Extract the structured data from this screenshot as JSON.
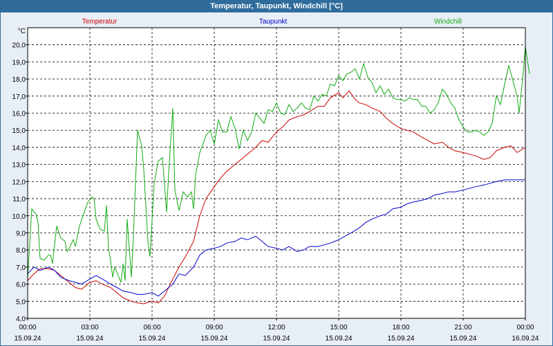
{
  "window": {
    "title": "Temperatur, Taupunkt, Windchill [°C]"
  },
  "chart_data": {
    "type": "line",
    "title": "Temperatur, Taupunkt, Windchill [°C]",
    "ylabel": "°C",
    "ylim": [
      4.0,
      21.0
    ],
    "xlim": [
      0,
      24
    ],
    "grid": true,
    "legend_position": "top",
    "y_ticks": [
      "4,0",
      "5,0",
      "6,0",
      "7,0",
      "8,0",
      "9,0",
      "10,0",
      "11,0",
      "12,0",
      "13,0",
      "14,0",
      "15,0",
      "16,0",
      "17,0",
      "18,0",
      "19,0",
      "20,0"
    ],
    "x_ticks": [
      {
        "x": 0,
        "time": "00:00",
        "date": "15.09.24"
      },
      {
        "x": 3,
        "time": "03:00",
        "date": "15.09.24"
      },
      {
        "x": 6,
        "time": "06:00",
        "date": "15.09.24"
      },
      {
        "x": 9,
        "time": "09:00",
        "date": "15.09.24"
      },
      {
        "x": 12,
        "time": "12:00",
        "date": "15.09.24"
      },
      {
        "x": 15,
        "time": "15:00",
        "date": "15.09.24"
      },
      {
        "x": 18,
        "time": "18:00",
        "date": "15.09.24"
      },
      {
        "x": 21,
        "time": "21:00",
        "date": "15.09.24"
      },
      {
        "x": 24,
        "time": "00:00",
        "date": "16.09.24"
      }
    ],
    "series": [
      {
        "name": "Temperatur",
        "color": "#cc0000",
        "points": [
          [
            0,
            6.2
          ],
          [
            0.3,
            6.6
          ],
          [
            0.6,
            6.9
          ],
          [
            1,
            6.9
          ],
          [
            1.3,
            6.8
          ],
          [
            1.6,
            6.5
          ],
          [
            2,
            6.1
          ],
          [
            2.3,
            5.8
          ],
          [
            2.6,
            5.7
          ],
          [
            3,
            6.1
          ],
          [
            3.3,
            6.2
          ],
          [
            3.6,
            6.0
          ],
          [
            4,
            5.8
          ],
          [
            4.3,
            5.5
          ],
          [
            4.6,
            5.2
          ],
          [
            5,
            5.0
          ],
          [
            5.3,
            4.9
          ],
          [
            5.6,
            4.85
          ],
          [
            6,
            5.0
          ],
          [
            6.3,
            4.9
          ],
          [
            6.6,
            5.3
          ],
          [
            7,
            6.3
          ],
          [
            7.3,
            7.0
          ],
          [
            7.6,
            7.6
          ],
          [
            8,
            8.5
          ],
          [
            8.3,
            10.0
          ],
          [
            8.6,
            11.0
          ],
          [
            9,
            11.7
          ],
          [
            9.3,
            12.2
          ],
          [
            9.6,
            12.6
          ],
          [
            10,
            13.0
          ],
          [
            10.3,
            13.3
          ],
          [
            10.6,
            13.6
          ],
          [
            11,
            14.0
          ],
          [
            11.3,
            14.4
          ],
          [
            11.6,
            14.3
          ],
          [
            12,
            14.9
          ],
          [
            12.3,
            15.2
          ],
          [
            12.6,
            15.6
          ],
          [
            13,
            15.8
          ],
          [
            13.3,
            15.9
          ],
          [
            13.6,
            16.1
          ],
          [
            14,
            16.4
          ],
          [
            14.3,
            16.4
          ],
          [
            14.6,
            16.9
          ],
          [
            15,
            17.2
          ],
          [
            15.2,
            16.9
          ],
          [
            15.5,
            17.3
          ],
          [
            15.8,
            16.8
          ],
          [
            16,
            16.6
          ],
          [
            16.3,
            16.5
          ],
          [
            16.6,
            16.3
          ],
          [
            17,
            16.1
          ],
          [
            17.3,
            15.7
          ],
          [
            17.6,
            15.4
          ],
          [
            18,
            15.1
          ],
          [
            18.3,
            15.0
          ],
          [
            18.6,
            14.9
          ],
          [
            19,
            14.6
          ],
          [
            19.3,
            14.4
          ],
          [
            19.6,
            14.2
          ],
          [
            20,
            14.3
          ],
          [
            20.3,
            14.0
          ],
          [
            20.6,
            13.8
          ],
          [
            21,
            13.7
          ],
          [
            21.3,
            13.6
          ],
          [
            21.6,
            13.5
          ],
          [
            22,
            13.3
          ],
          [
            22.3,
            13.4
          ],
          [
            22.6,
            13.8
          ],
          [
            23,
            14.0
          ],
          [
            23.3,
            14.1
          ],
          [
            23.6,
            13.7
          ],
          [
            24,
            14.0
          ]
        ]
      },
      {
        "name": "Taupunkt",
        "color": "#0000cc",
        "points": [
          [
            0,
            6.6
          ],
          [
            0.3,
            7.0
          ],
          [
            0.6,
            6.8
          ],
          [
            1,
            7.0
          ],
          [
            1.3,
            6.8
          ],
          [
            1.6,
            6.4
          ],
          [
            2,
            6.2
          ],
          [
            2.3,
            6.1
          ],
          [
            2.6,
            6.0
          ],
          [
            3,
            6.3
          ],
          [
            3.3,
            6.5
          ],
          [
            3.6,
            6.3
          ],
          [
            4,
            6.0
          ],
          [
            4.3,
            5.8
          ],
          [
            4.6,
            5.6
          ],
          [
            5,
            5.5
          ],
          [
            5.3,
            5.4
          ],
          [
            5.6,
            5.4
          ],
          [
            6,
            5.5
          ],
          [
            6.3,
            5.3
          ],
          [
            6.6,
            5.6
          ],
          [
            7,
            6.0
          ],
          [
            7.3,
            6.6
          ],
          [
            7.6,
            6.5
          ],
          [
            8,
            7.0
          ],
          [
            8.3,
            7.7
          ],
          [
            8.6,
            8.0
          ],
          [
            9,
            8.1
          ],
          [
            9.3,
            8.2
          ],
          [
            9.6,
            8.4
          ],
          [
            10,
            8.5
          ],
          [
            10.3,
            8.7
          ],
          [
            10.6,
            8.6
          ],
          [
            11,
            8.8
          ],
          [
            11.3,
            8.5
          ],
          [
            11.6,
            8.2
          ],
          [
            12,
            8.1
          ],
          [
            12.3,
            8.0
          ],
          [
            12.6,
            8.2
          ],
          [
            13,
            7.9
          ],
          [
            13.3,
            8.0
          ],
          [
            13.6,
            8.2
          ],
          [
            14,
            8.2
          ],
          [
            14.3,
            8.3
          ],
          [
            14.6,
            8.4
          ],
          [
            15,
            8.6
          ],
          [
            15.3,
            8.8
          ],
          [
            15.6,
            9.0
          ],
          [
            16,
            9.3
          ],
          [
            16.3,
            9.6
          ],
          [
            16.6,
            9.8
          ],
          [
            17,
            10.0
          ],
          [
            17.3,
            10.1
          ],
          [
            17.6,
            10.4
          ],
          [
            18,
            10.5
          ],
          [
            18.3,
            10.7
          ],
          [
            18.6,
            10.8
          ],
          [
            19,
            10.9
          ],
          [
            19.3,
            11.0
          ],
          [
            19.6,
            11.2
          ],
          [
            20,
            11.3
          ],
          [
            20.3,
            11.4
          ],
          [
            20.6,
            11.4
          ],
          [
            21,
            11.5
          ],
          [
            21.3,
            11.6
          ],
          [
            21.6,
            11.7
          ],
          [
            22,
            11.8
          ],
          [
            22.3,
            11.9
          ],
          [
            22.6,
            12.0
          ],
          [
            23,
            12.1
          ],
          [
            23.3,
            12.1
          ],
          [
            23.6,
            12.1
          ],
          [
            24,
            12.1
          ]
        ]
      },
      {
        "name": "Windchill",
        "color": "#11aa11",
        "points": [
          [
            0,
            6.3
          ],
          [
            0.2,
            10.4
          ],
          [
            0.4,
            10.1
          ],
          [
            0.5,
            9.6
          ],
          [
            0.6,
            7.5
          ],
          [
            0.8,
            7.4
          ],
          [
            1,
            7.7
          ],
          [
            1.1,
            7.7
          ],
          [
            1.2,
            7.2
          ],
          [
            1.4,
            9.4
          ],
          [
            1.6,
            8.7
          ],
          [
            1.8,
            8.5
          ],
          [
            1.9,
            7.9
          ],
          [
            2,
            8.1
          ],
          [
            2.2,
            8.6
          ],
          [
            2.3,
            8.2
          ],
          [
            2.5,
            9.4
          ],
          [
            2.7,
            10.1
          ],
          [
            2.9,
            10.8
          ],
          [
            3.1,
            11.1
          ],
          [
            3.2,
            11.0
          ],
          [
            3.3,
            9.8
          ],
          [
            3.5,
            9.2
          ],
          [
            3.7,
            9.1
          ],
          [
            3.8,
            10.6
          ],
          [
            3.9,
            8.1
          ],
          [
            4,
            7.4
          ],
          [
            4.1,
            6.4
          ],
          [
            4.2,
            7.0
          ],
          [
            4.4,
            6.4
          ],
          [
            4.5,
            6.1
          ],
          [
            4.6,
            7.2
          ],
          [
            4.7,
            6.2
          ],
          [
            4.8,
            9.8
          ],
          [
            5.0,
            6.4
          ],
          [
            5.1,
            8.8
          ],
          [
            5.3,
            15.0
          ],
          [
            5.5,
            14.1
          ],
          [
            5.6,
            12.7
          ],
          [
            5.8,
            8.5
          ],
          [
            5.9,
            7.6
          ],
          [
            6.1,
            11.9
          ],
          [
            6.3,
            13.2
          ],
          [
            6.5,
            13.4
          ],
          [
            6.6,
            11.8
          ],
          [
            6.7,
            10.2
          ],
          [
            6.8,
            12.5
          ],
          [
            7.0,
            16.3
          ],
          [
            7.1,
            11.5
          ],
          [
            7.3,
            10.3
          ],
          [
            7.5,
            11.4
          ],
          [
            7.7,
            11.1
          ],
          [
            7.9,
            11.4
          ],
          [
            8.0,
            10.4
          ],
          [
            8.1,
            12.4
          ],
          [
            8.3,
            13.7
          ],
          [
            8.4,
            14.0
          ],
          [
            8.6,
            14.7
          ],
          [
            8.8,
            15.0
          ],
          [
            9.0,
            14.2
          ],
          [
            9.2,
            15.6
          ],
          [
            9.4,
            14.9
          ],
          [
            9.6,
            14.9
          ],
          [
            9.8,
            15.8
          ],
          [
            10,
            15.1
          ],
          [
            10.2,
            13.9
          ],
          [
            10.4,
            15.0
          ],
          [
            10.6,
            14.4
          ],
          [
            10.8,
            14.9
          ],
          [
            11,
            16.0
          ],
          [
            11.2,
            15.7
          ],
          [
            11.4,
            15.4
          ],
          [
            11.6,
            16.2
          ],
          [
            11.8,
            16.1
          ],
          [
            12,
            16.6
          ],
          [
            12.2,
            16.0
          ],
          [
            12.4,
            15.9
          ],
          [
            12.6,
            16.5
          ],
          [
            12.8,
            16.1
          ],
          [
            13,
            16.3
          ],
          [
            13.2,
            16.6
          ],
          [
            13.4,
            16.3
          ],
          [
            13.6,
            16.2
          ],
          [
            13.8,
            17.0
          ],
          [
            14,
            16.7
          ],
          [
            14.2,
            17.1
          ],
          [
            14.4,
            17.0
          ],
          [
            14.6,
            17.7
          ],
          [
            14.8,
            17.6
          ],
          [
            15,
            18.2
          ],
          [
            15.2,
            17.9
          ],
          [
            15.4,
            18.3
          ],
          [
            15.6,
            18.4
          ],
          [
            15.8,
            18.6
          ],
          [
            16,
            18.0
          ],
          [
            16.2,
            18.9
          ],
          [
            16.4,
            18.1
          ],
          [
            16.6,
            17.8
          ],
          [
            16.8,
            17.2
          ],
          [
            17,
            17.6
          ],
          [
            17.2,
            17.1
          ],
          [
            17.4,
            17.4
          ],
          [
            17.6,
            16.9
          ],
          [
            17.8,
            16.8
          ],
          [
            18,
            16.8
          ],
          [
            18.2,
            16.7
          ],
          [
            18.4,
            16.9
          ],
          [
            18.6,
            16.8
          ],
          [
            18.8,
            16.8
          ],
          [
            19,
            16.4
          ],
          [
            19.2,
            16.4
          ],
          [
            19.4,
            16.0
          ],
          [
            19.6,
            16.2
          ],
          [
            19.8,
            16.6
          ],
          [
            20,
            17.4
          ],
          [
            20.2,
            17.1
          ],
          [
            20.4,
            16.6
          ],
          [
            20.6,
            16.3
          ],
          [
            20.8,
            15.6
          ],
          [
            21,
            15.2
          ],
          [
            21.2,
            14.9
          ],
          [
            21.4,
            14.9
          ],
          [
            21.6,
            15.0
          ],
          [
            21.8,
            14.9
          ],
          [
            22,
            14.7
          ],
          [
            22.2,
            14.9
          ],
          [
            22.4,
            15.4
          ],
          [
            22.6,
            17.0
          ],
          [
            22.8,
            16.5
          ],
          [
            23,
            17.7
          ],
          [
            23.2,
            18.8
          ],
          [
            23.4,
            17.9
          ],
          [
            23.6,
            17.0
          ],
          [
            23.7,
            16.0
          ],
          [
            23.9,
            18.4
          ],
          [
            24.0,
            19.9
          ],
          [
            24.2,
            18.3
          ]
        ]
      }
    ]
  }
}
